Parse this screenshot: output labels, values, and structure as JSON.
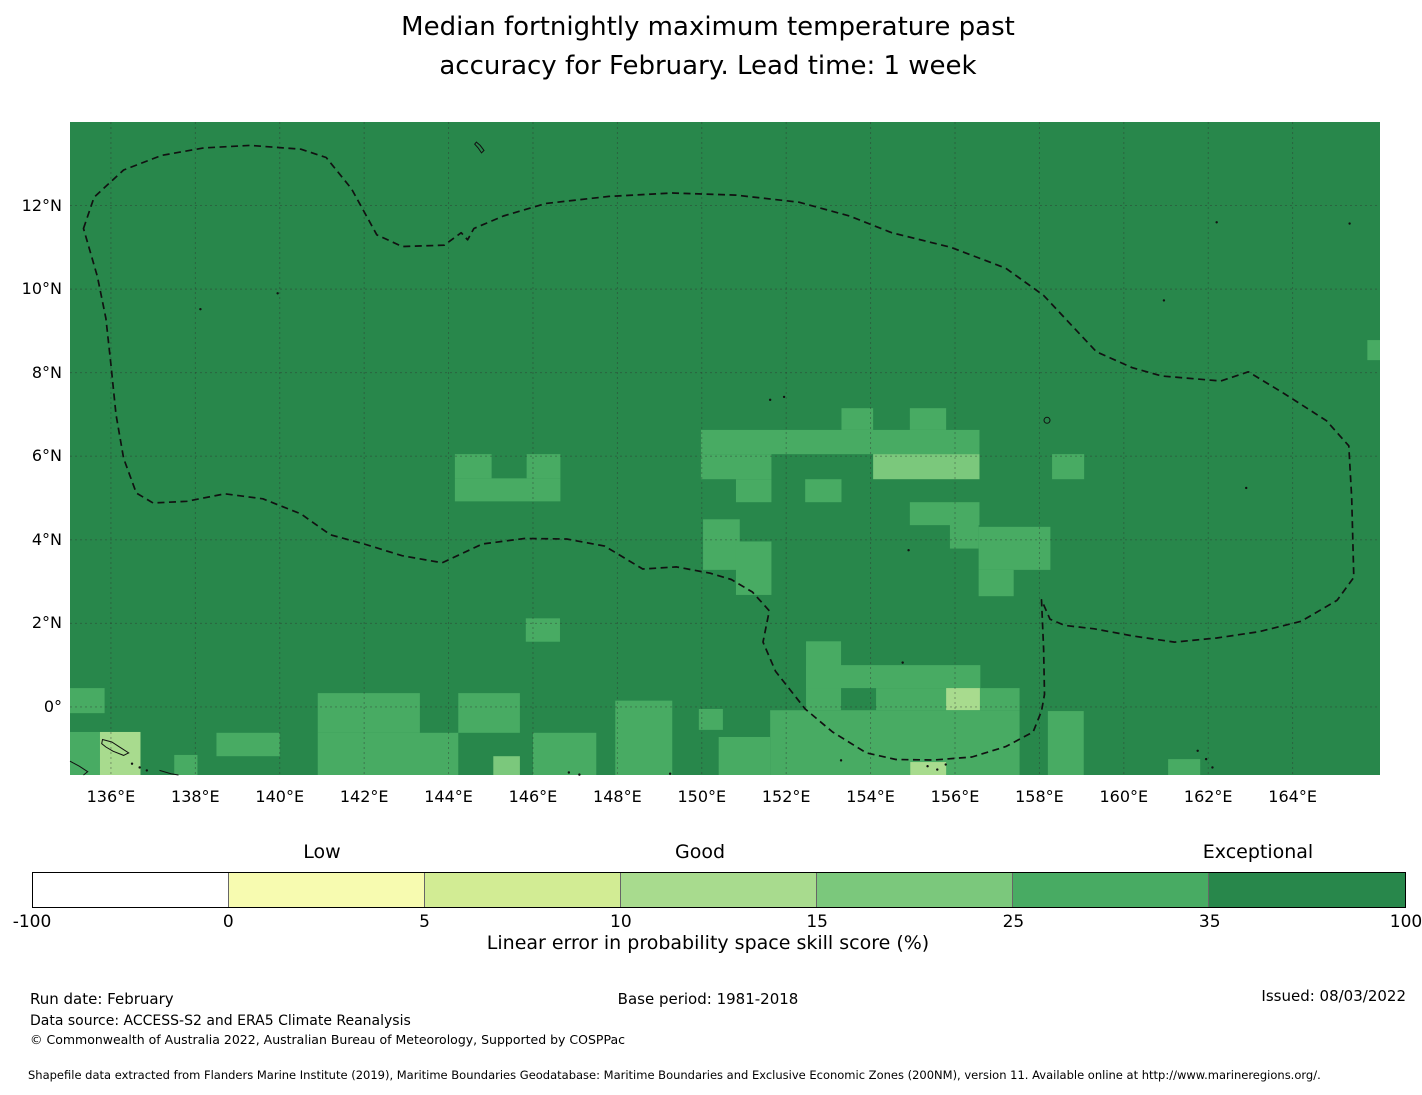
{
  "title": {
    "line1": "Median fortnightly maximum temperature past",
    "line2": "accuracy for February. Lead time: 1 week"
  },
  "footer": {
    "run_date": "Run date: February",
    "base_period": "Base period: 1981-2018",
    "issued": "Issued: 08/03/2022",
    "data_source": "Data source: ACCESS-S2 and ERA5 Climate Reanalysis",
    "copyright": "© Commonwealth of Australia 2022, Australian Bureau of Meteorology, Supported by COSPPac",
    "shapefile_note": "Shapefile data extracted from Flanders Marine Institute (2019), Maritime Boundaries Geodatabase: Maritime Boundaries and Exclusive Economic Zones (200NM), version 11. Available online at http://www.marineregions.org/."
  },
  "chart_data": {
    "type": "heatmap",
    "title": "Median fortnightly maximum temperature past accuracy for February. Lead time: 1 week",
    "projection": "longitude/latitude degrees",
    "extent": {
      "lon": [
        135.03,
        166.07
      ],
      "lat": [
        -1.63,
        14.0
      ]
    },
    "grid_on": true,
    "grid": {
      "lons": [
        136,
        138,
        140,
        142,
        144,
        146,
        148,
        150,
        152,
        154,
        156,
        158,
        160,
        162,
        164
      ],
      "lats": [
        0,
        2,
        4,
        6,
        8,
        10,
        12
      ]
    },
    "x_ticks": [
      {
        "lon": 136,
        "label": "136°E"
      },
      {
        "lon": 138,
        "label": "138°E"
      },
      {
        "lon": 140,
        "label": "140°E"
      },
      {
        "lon": 142,
        "label": "142°E"
      },
      {
        "lon": 144,
        "label": "144°E"
      },
      {
        "lon": 146,
        "label": "146°E"
      },
      {
        "lon": 148,
        "label": "148°E"
      },
      {
        "lon": 150,
        "label": "150°E"
      },
      {
        "lon": 152,
        "label": "152°E"
      },
      {
        "lon": 154,
        "label": "154°E"
      },
      {
        "lon": 156,
        "label": "156°E"
      },
      {
        "lon": 158,
        "label": "158°E"
      },
      {
        "lon": 160,
        "label": "160°E"
      },
      {
        "lon": 162,
        "label": "162°E"
      },
      {
        "lon": 164,
        "label": "164°E"
      }
    ],
    "y_ticks": [
      {
        "lat": 12,
        "label": "12°N"
      },
      {
        "lat": 10,
        "label": "10°N"
      },
      {
        "lat": 8,
        "label": "8°N"
      },
      {
        "lat": 6,
        "label": "6°N"
      },
      {
        "lat": 4,
        "label": "4°N"
      },
      {
        "lat": 2,
        "label": "2°N"
      },
      {
        "lat": 0,
        "label": "0°"
      }
    ],
    "colorbar": {
      "axis_label": "Linear error in probability space skill score (%)",
      "boundaries": [
        -100,
        0,
        5,
        10,
        15,
        25,
        35,
        100
      ],
      "tick_labels": [
        "-100",
        "0",
        "5",
        "10",
        "15",
        "25",
        "35",
        "100"
      ],
      "segments": [
        {
          "range": "-100 to 0",
          "color": "#ffffff"
        },
        {
          "range": "0 to 5",
          "color": "#f7fbb0"
        },
        {
          "range": "5 to 10",
          "color": "#d2ec94"
        },
        {
          "range": "10 to 15",
          "color": "#a8db8e"
        },
        {
          "range": "15 to 25",
          "color": "#7bc87c"
        },
        {
          "range": "25 to 35",
          "color": "#48ab63"
        },
        {
          "range": "35 to 100",
          "color": "#28874b"
        }
      ],
      "categories": [
        {
          "label": "Low",
          "x": 322
        },
        {
          "label": "Good",
          "x": 700
        },
        {
          "label": "Exceptional",
          "x": 1258
        }
      ]
    },
    "level_colors": {
      "10-15": "#a8db8e",
      "15-25": "#7bc87c",
      "25-35": "#48ab63",
      "35-100": "#28874b"
    },
    "base_level": "35-100",
    "cells": [
      {
        "lon": [
          144.15,
          145.02
        ],
        "lat": [
          5.47,
          6.05
        ],
        "level": "25-35"
      },
      {
        "lon": [
          145.85,
          146.65
        ],
        "lat": [
          5.47,
          6.05
        ],
        "level": "25-35"
      },
      {
        "lon": [
          144.15,
          146.65
        ],
        "lat": [
          4.92,
          5.47
        ],
        "level": "25-35"
      },
      {
        "lon": [
          153.31,
          154.06
        ],
        "lat": [
          6.63,
          7.15
        ],
        "level": "25-35"
      },
      {
        "lon": [
          154.93,
          155.79
        ],
        "lat": [
          6.63,
          7.15
        ],
        "level": "25-35"
      },
      {
        "lon": [
          149.98,
          156.58
        ],
        "lat": [
          6.05,
          6.63
        ],
        "level": "25-35"
      },
      {
        "lon": [
          149.98,
          151.65
        ],
        "lat": [
          5.45,
          6.05
        ],
        "level": "25-35"
      },
      {
        "lon": [
          154.06,
          156.58
        ],
        "lat": [
          5.45,
          6.05
        ],
        "level": "15-25"
      },
      {
        "lon": [
          158.3,
          159.06
        ],
        "lat": [
          5.45,
          6.05
        ],
        "level": "25-35"
      },
      {
        "lon": [
          150.81,
          151.65
        ],
        "lat": [
          4.9,
          5.45
        ],
        "level": "25-35"
      },
      {
        "lon": [
          152.45,
          153.31
        ],
        "lat": [
          4.9,
          5.45
        ],
        "level": "25-35"
      },
      {
        "lon": [
          154.93,
          156.58
        ],
        "lat": [
          4.35,
          4.9
        ],
        "level": "25-35"
      },
      {
        "lon": [
          155.88,
          156.56
        ],
        "lat": [
          3.79,
          4.86
        ],
        "level": "25-35"
      },
      {
        "lon": [
          156.56,
          158.26
        ],
        "lat": [
          3.28,
          4.31
        ],
        "level": "25-35"
      },
      {
        "lon": [
          156.56,
          157.39
        ],
        "lat": [
          2.65,
          3.28
        ],
        "level": "25-35"
      },
      {
        "lon": [
          150.03,
          150.9
        ],
        "lat": [
          3.28,
          4.49
        ],
        "level": "25-35"
      },
      {
        "lon": [
          150.81,
          151.65
        ],
        "lat": [
          2.68,
          3.96
        ],
        "level": "25-35"
      },
      {
        "lon": [
          145.83,
          146.64
        ],
        "lat": [
          1.56,
          2.12
        ],
        "level": "25-35"
      },
      {
        "lon": [
          165.77,
          166.07
        ],
        "lat": [
          8.3,
          8.78
        ],
        "level": "25-35"
      },
      {
        "lon": [
          152.47,
          153.3
        ],
        "lat": [
          -0.08,
          1.57
        ],
        "level": "25-35"
      },
      {
        "lon": [
          152.47,
          156.6
        ],
        "lat": [
          0.45,
          1.0
        ],
        "level": "25-35"
      },
      {
        "lon": [
          154.13,
          157.53
        ],
        "lat": [
          -0.08,
          0.45
        ],
        "level": "25-35"
      },
      {
        "lon": [
          155.79,
          156.59
        ],
        "lat": [
          -0.08,
          0.45
        ],
        "level": "10-15"
      },
      {
        "lon": [
          149.93,
          150.5
        ],
        "lat": [
          -0.55,
          -0.05
        ],
        "level": "25-35"
      },
      {
        "lon": [
          151.62,
          157.53
        ],
        "lat": [
          -1.63,
          -0.08
        ],
        "level": "25-35"
      },
      {
        "lon": [
          150.4,
          151.62
        ],
        "lat": [
          -1.63,
          -0.72
        ],
        "level": "25-35"
      },
      {
        "lon": [
          154.94,
          155.79
        ],
        "lat": [
          -1.63,
          -1.32
        ],
        "level": "10-15"
      },
      {
        "lon": [
          158.2,
          159.05
        ],
        "lat": [
          -1.63,
          -0.1
        ],
        "level": "25-35"
      },
      {
        "lon": [
          161.05,
          161.81
        ],
        "lat": [
          -1.63,
          -1.25
        ],
        "level": "25-35"
      },
      {
        "lon": [
          135.03,
          135.85
        ],
        "lat": [
          -0.15,
          0.45
        ],
        "level": "25-35"
      },
      {
        "lon": [
          135.03,
          135.74
        ],
        "lat": [
          -1.63,
          -0.6
        ],
        "level": "25-35"
      },
      {
        "lon": [
          135.74,
          136.7
        ],
        "lat": [
          -1.63,
          -0.6
        ],
        "level": "10-15"
      },
      {
        "lon": [
          137.5,
          138.05
        ],
        "lat": [
          -1.63,
          -1.15
        ],
        "level": "25-35"
      },
      {
        "lon": [
          138.5,
          140.0
        ],
        "lat": [
          -1.18,
          -0.62
        ],
        "level": "25-35"
      },
      {
        "lon": [
          140.9,
          143.32
        ],
        "lat": [
          -0.62,
          0.33
        ],
        "level": "25-35"
      },
      {
        "lon": [
          140.9,
          144.23
        ],
        "lat": [
          -1.63,
          -0.62
        ],
        "level": "25-35"
      },
      {
        "lon": [
          144.23,
          145.69
        ],
        "lat": [
          -0.62,
          0.33
        ],
        "level": "25-35"
      },
      {
        "lon": [
          145.06,
          145.69
        ],
        "lat": [
          -1.63,
          -1.18
        ],
        "level": "15-25"
      },
      {
        "lon": [
          146.0,
          147.5
        ],
        "lat": [
          -1.63,
          -0.62
        ],
        "level": "25-35"
      },
      {
        "lon": [
          147.95,
          149.3
        ],
        "lat": [
          -1.63,
          0.15
        ],
        "level": "25-35"
      }
    ],
    "eez_boundary": [
      [
        135.35,
        11.45
      ],
      [
        135.6,
        12.2
      ],
      [
        136.3,
        12.85
      ],
      [
        137.2,
        13.2
      ],
      [
        138.2,
        13.38
      ],
      [
        139.3,
        13.44
      ],
      [
        140.5,
        13.35
      ],
      [
        141.1,
        13.15
      ],
      [
        141.7,
        12.4
      ],
      [
        142.3,
        11.3
      ],
      [
        142.9,
        11.02
      ],
      [
        143.9,
        11.05
      ],
      [
        144.3,
        11.35
      ],
      [
        144.45,
        11.18
      ],
      [
        144.6,
        11.45
      ],
      [
        145.3,
        11.75
      ],
      [
        146.3,
        12.05
      ],
      [
        147.8,
        12.22
      ],
      [
        149.3,
        12.3
      ],
      [
        150.8,
        12.25
      ],
      [
        152.3,
        12.08
      ],
      [
        153.5,
        11.75
      ],
      [
        154.5,
        11.35
      ],
      [
        155.9,
        11.0
      ],
      [
        157.2,
        10.5
      ],
      [
        158.1,
        9.85
      ],
      [
        159.35,
        8.5
      ],
      [
        160.2,
        8.12
      ],
      [
        160.9,
        7.92
      ],
      [
        162.3,
        7.8
      ],
      [
        162.95,
        8.02
      ],
      [
        163.8,
        7.5
      ],
      [
        164.8,
        6.85
      ],
      [
        165.33,
        6.25
      ],
      [
        165.4,
        5.0
      ],
      [
        165.45,
        3.1
      ],
      [
        165.05,
        2.55
      ],
      [
        164.2,
        2.05
      ],
      [
        163.2,
        1.8
      ],
      [
        162.2,
        1.65
      ],
      [
        161.2,
        1.55
      ],
      [
        160.2,
        1.7
      ],
      [
        159.3,
        1.87
      ],
      [
        158.6,
        1.95
      ],
      [
        158.25,
        2.1
      ],
      [
        158.05,
        2.56
      ],
      [
        158.1,
        1.4
      ],
      [
        158.12,
        0.3
      ],
      [
        158.05,
        -0.1
      ],
      [
        157.85,
        -0.6
      ],
      [
        157.2,
        -0.95
      ],
      [
        156.4,
        -1.2
      ],
      [
        155.5,
        -1.27
      ],
      [
        154.6,
        -1.26
      ],
      [
        153.9,
        -1.1
      ],
      [
        153.1,
        -0.6
      ],
      [
        152.45,
        -0.05
      ],
      [
        151.75,
        0.85
      ],
      [
        151.45,
        1.55
      ],
      [
        151.6,
        2.3
      ],
      [
        151.2,
        2.75
      ],
      [
        150.7,
        3.05
      ],
      [
        150.2,
        3.2
      ],
      [
        149.4,
        3.35
      ],
      [
        148.6,
        3.3
      ],
      [
        147.7,
        3.85
      ],
      [
        146.8,
        4.02
      ],
      [
        145.8,
        4.03
      ],
      [
        144.8,
        3.9
      ],
      [
        143.85,
        3.45
      ],
      [
        142.9,
        3.62
      ],
      [
        142.0,
        3.9
      ],
      [
        141.2,
        4.12
      ],
      [
        140.5,
        4.62
      ],
      [
        139.6,
        4.98
      ],
      [
        138.7,
        5.1
      ],
      [
        137.8,
        4.92
      ],
      [
        137.0,
        4.88
      ],
      [
        136.6,
        5.12
      ],
      [
        136.3,
        5.95
      ],
      [
        136.12,
        7.0
      ],
      [
        136.0,
        8.2
      ],
      [
        135.88,
        9.3
      ],
      [
        135.68,
        10.3
      ]
    ],
    "islands": {
      "outlines": [
        {
          "name": "biak",
          "closed": true,
          "points": [
            [
              135.8,
              -0.78
            ],
            [
              136.02,
              -0.84
            ],
            [
              136.22,
              -0.97
            ],
            [
              136.42,
              -1.1
            ],
            [
              136.3,
              -1.16
            ],
            [
              136.05,
              -1.06
            ],
            [
              135.88,
              -0.96
            ],
            [
              135.78,
              -0.88
            ]
          ]
        },
        {
          "name": "guam",
          "closed": true,
          "points": [
            [
              144.66,
              13.52
            ],
            [
              144.75,
              13.44
            ],
            [
              144.84,
              13.32
            ],
            [
              144.78,
              13.26
            ],
            [
              144.7,
              13.38
            ],
            [
              144.62,
              13.47
            ]
          ]
        },
        {
          "name": "coast-west",
          "closed": false,
          "points": [
            [
              135.03,
              -1.3
            ],
            [
              135.25,
              -1.42
            ],
            [
              135.45,
              -1.55
            ],
            [
              135.35,
              -1.63
            ]
          ]
        },
        {
          "name": "coast-south",
          "closed": false,
          "points": [
            [
              137.15,
              -1.52
            ],
            [
              137.42,
              -1.6
            ],
            [
              137.6,
              -1.63
            ]
          ]
        }
      ],
      "rings": [
        [
          158.18,
          6.86
        ]
      ],
      "dots": [
        [
          138.12,
          9.52
        ],
        [
          139.95,
          9.9
        ],
        [
          151.62,
          7.35
        ],
        [
          151.95,
          7.42
        ],
        [
          162.2,
          11.6
        ],
        [
          165.35,
          11.57
        ],
        [
          160.95,
          9.73
        ],
        [
          162.9,
          5.24
        ],
        [
          154.9,
          3.75
        ],
        [
          154.76,
          1.06
        ],
        [
          136.5,
          -1.36
        ],
        [
          136.68,
          -1.45
        ],
        [
          136.85,
          -1.52
        ],
        [
          146.85,
          -1.57
        ],
        [
          147.1,
          -1.62
        ],
        [
          149.25,
          -1.6
        ],
        [
          153.3,
          -1.28
        ],
        [
          155.35,
          -1.42
        ],
        [
          155.58,
          -1.5
        ],
        [
          155.78,
          -1.38
        ],
        [
          161.75,
          -1.05
        ],
        [
          161.95,
          -1.25
        ],
        [
          162.1,
          -1.45
        ]
      ]
    }
  }
}
